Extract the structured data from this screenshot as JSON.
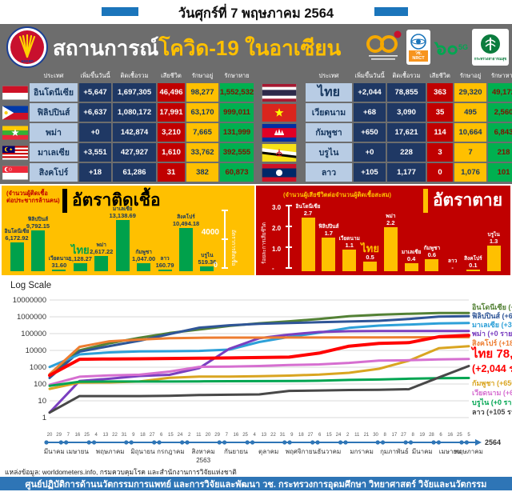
{
  "topbar": {
    "title": "วันศุกร์ที่ 7 พฤษภาคม 2564"
  },
  "banner": {
    "title_white": "สถานการณ์",
    "title_yellow": "โควิด-19 ในอาเซียน",
    "logos": {
      "logo_60th": "60th-anniversary-logo",
      "nrct_line1": "วช.",
      "nrct_line2": "NRCT",
      "logo_5g_text": "๖๐",
      "logo_5g_sub": "5G",
      "moph_text": "กระทรวงสาธารณสุข"
    }
  },
  "tables": {
    "headers": [
      "ประเทศ",
      "เพิ่มขึ้นวันนี้",
      "ติดเชื้อรวม",
      "เสียชีวิต",
      "รักษาอยู่",
      "รักษาหาย"
    ],
    "left_rows": [
      {
        "country": "อินโดนีเซีย",
        "new": "+5,647",
        "total": "1,697,305",
        "deaths": "46,496",
        "active": "98,277",
        "recovered": "1,552,532"
      },
      {
        "country": "ฟิลิปปินส์",
        "new": "+6,637",
        "total": "1,080,172",
        "deaths": "17,991",
        "active": "63,170",
        "recovered": "999,011"
      },
      {
        "country": "พม่า",
        "new": "+0",
        "total": "142,874",
        "deaths": "3,210",
        "active": "7,665",
        "recovered": "131,999"
      },
      {
        "country": "มาเลเซีย",
        "new": "+3,551",
        "total": "427,927",
        "deaths": "1,610",
        "active": "33,762",
        "recovered": "392,555"
      },
      {
        "country": "สิงคโปร์",
        "new": "+18",
        "total": "61,286",
        "deaths": "31",
        "active": "382",
        "recovered": "60,873"
      }
    ],
    "right_rows": [
      {
        "country": "ไทย",
        "new": "+2,044",
        "total": "78,855",
        "deaths": "363",
        "active": "29,320",
        "recovered": "49,172"
      },
      {
        "country": "เวียดนาม",
        "new": "+68",
        "total": "3,090",
        "deaths": "35",
        "active": "495",
        "recovered": "2,560"
      },
      {
        "country": "กัมพูชา",
        "new": "+650",
        "total": "17,621",
        "deaths": "114",
        "active": "10,664",
        "recovered": "6,843"
      },
      {
        "country": "บรูไน",
        "new": "+0",
        "total": "228",
        "deaths": "3",
        "active": "7",
        "recovered": "218"
      },
      {
        "country": "ลาว",
        "new": "+105",
        "total": "1,177",
        "deaths": "0",
        "active": "1,076",
        "recovered": "101"
      }
    ]
  },
  "chart_data": [
    {
      "type": "bar",
      "panel": "infection-rate",
      "title": "อัตราติดเชื้อ",
      "subtitle": "(จำนวนผู้ติดเชื้อต่อประชากรล้านคน)",
      "subtitle_lines": [
        "(จำนวนผู้ติดเชื้อ",
        "ต่อประชากรล้านคน)"
      ],
      "categories": [
        "อินโดนีเซีย",
        "ฟิลิปปินส์",
        "เวียดนาม",
        "ไทย",
        "พม่า",
        "มาเลเซีย",
        "กัมพูชา",
        "ลาว",
        "สิงคโปร์",
        "บรูไน"
      ],
      "values": [
        6172.92,
        9792.15,
        31.6,
        1128.27,
        2617.22,
        13138.69,
        1047.0,
        160.79,
        10494.18,
        519.36
      ],
      "value_labels": [
        "6,172.92",
        "9,792.15",
        "31.60",
        "1,128.27",
        "2,617.22",
        "13,138.69",
        "1,047.00",
        "160.79",
        "10,494.18",
        "519.36"
      ],
      "highlight_category": "ไทย",
      "axis_label": "อัตราการติดเชื้อ",
      "axis_ticks": [
        "4000",
        "0"
      ],
      "bar_color": "#00a14b",
      "panel_bg": "#ffc000"
    },
    {
      "type": "bar",
      "panel": "death-rate",
      "title": "อัตราตาย",
      "subtitle": "(จำนวนผู้เสียชีวิตต่อจำนวนผู้ติดเชื้อสะสม)",
      "categories": [
        "อินโดนีเซีย",
        "ฟิลิปปินส์",
        "เวียดนาม",
        "ไทย",
        "พม่า",
        "มาเลเซีย",
        "กัมพูชา",
        "ลาว",
        "สิงคโปร์",
        "บรูไน"
      ],
      "values": [
        2.7,
        1.7,
        1.1,
        0.5,
        2.2,
        0.4,
        0.6,
        null,
        0.1,
        1.3
      ],
      "value_labels": [
        "2.7",
        "1.7",
        "1.1",
        "0.5",
        "2.2",
        "0.4",
        "0.6",
        "-",
        "0.1",
        "1.3"
      ],
      "ylim": [
        0,
        3.0
      ],
      "highlight_category": "ไทย",
      "axis_label": "ร้อยละการเสียชีวิต",
      "axis_ticks": [
        "3.0",
        "2.0",
        "1.0",
        "-"
      ],
      "bar_color": "#ffc000",
      "panel_bg": "#c00000"
    },
    {
      "type": "line",
      "title": "Log Scale",
      "yscale": "log",
      "ylim": [
        1,
        10000000
      ],
      "ytick_labels": [
        "10000000",
        "1000000",
        "100000",
        "10000",
        "1000",
        "100",
        "10",
        "1"
      ],
      "day_ticks": [
        "20",
        "29",
        "7",
        "16",
        "25",
        "4",
        "13",
        "22",
        "31",
        "9",
        "18",
        "27",
        "6",
        "15",
        "24",
        "2",
        "11",
        "20",
        "29",
        "7",
        "16",
        "25",
        "4",
        "13",
        "22",
        "31",
        "9",
        "18",
        "27",
        "6",
        "15",
        "24",
        "2",
        "11",
        "21",
        "30",
        "8",
        "17",
        "27",
        "8",
        "19",
        "28",
        "6",
        "16",
        "25",
        "5"
      ],
      "month_labels": [
        "มีนาคม",
        "เมษายน",
        "พฤษภาคม",
        "มิถุนายน",
        "กรกฎาคม",
        "สิงหาคม",
        "กันยายน",
        "ตุลาคม",
        "พฤศจิกายน",
        "ธันวาคม",
        "มกราคม",
        "กุมภาพันธ์",
        "มีนาคม",
        "เมษายน",
        "พฤษภาคม"
      ],
      "month_tick_counts": [
        2,
        3,
        4,
        3,
        3,
        4,
        3,
        4,
        3,
        3,
        4,
        3,
        3,
        3,
        1
      ],
      "year_label_under": "2563",
      "year_label_right": "2564",
      "series": [
        {
          "name": "อินโดนีเซีย",
          "label": "อินโดนีเซีย (+5,647  ราย)",
          "color": "#538135",
          "values": [
            369,
            10118,
            26473,
            56385,
            108376,
            174796,
            287008,
            410088,
            538883,
            743198,
            1078314,
            1334634,
            1511712,
            1668368,
            1697305
          ]
        },
        {
          "name": "ฟิลิปปินส์",
          "label": "ฟิลิปปินส์ (+6,637 ราย)",
          "color": "#2f5597",
          "values": [
            230,
            8488,
            18086,
            37514,
            93354,
            224264,
            314079,
            380729,
            431630,
            474064,
            525618,
            576352,
            747288,
            1037460,
            1080172
          ]
        },
        {
          "name": "มาเลเซีย",
          "label": "มาเลเซีย (+3,551 ราย)",
          "color": "#2da0d8",
          "values": [
            1030,
            5780,
            7629,
            8640,
            8976,
            9340,
            11135,
            31548,
            63176,
            113010,
            219173,
            300752,
            345500,
            408713,
            427927
          ]
        },
        {
          "name": "พม่า",
          "label": "พม่า (+0 ราย)",
          "color": "#7a3fc0",
          "values": [
            2,
            151,
            206,
            299,
            353,
            882,
            12425,
            52706,
            87977,
            124630,
            139152,
            141896,
            142385,
            142800,
            142874
          ]
        },
        {
          "name": "สิงคโปร์",
          "label": "สิงคโปร์ (+18 ราย)",
          "color": "#ed7d31",
          "values": [
            385,
            16169,
            34884,
            43907,
            52825,
            56771,
            57765,
            58015,
            58230,
            58569,
            59449,
            59925,
            60288,
            61121,
            61286
          ]
        },
        {
          "name": "ไทย",
          "label": "ไทย 78,855",
          "label2": "(+2,044 ราย)",
          "color": "#ff0000",
          "values": [
            322,
            2954,
            3081,
            3171,
            3310,
            3411,
            3564,
            3780,
            3977,
            6884,
            17953,
            25951,
            28863,
            65153,
            78855
          ]
        },
        {
          "name": "กัมพูชา",
          "label": "กัมพูชา (+650 ราย)",
          "color": "#d9a521",
          "values": [
            51,
            122,
            125,
            141,
            234,
            273,
            275,
            292,
            315,
            364,
            466,
            805,
            2440,
            13402,
            17621
          ]
        },
        {
          "name": "เวียดนาม",
          "label": "เวียดนาม (+68 ราย)",
          "color": "#d66fd0",
          "values": [
            91,
            270,
            328,
            355,
            546,
            1044,
            1094,
            1180,
            1343,
            1465,
            1817,
            2448,
            2603,
            2928,
            3090
          ]
        },
        {
          "name": "บรูไน",
          "label": "บรูไน (+0 ราย)",
          "color": "#00a551",
          "values": [
            78,
            138,
            141,
            141,
            141,
            143,
            146,
            148,
            150,
            157,
            175,
            185,
            206,
            223,
            228
          ]
        },
        {
          "name": "ลาว",
          "label": "ลาว (+105 ราย)",
          "color": "#484848",
          "values": [
            2,
            19,
            19,
            19,
            20,
            22,
            23,
            24,
            39,
            41,
            44,
            45,
            49,
            247,
            1177
          ]
        }
      ]
    }
  ],
  "source": "แหล่งข้อมูล: worldometers.info, กรมควบคุมโรค และสำนักงานการวิจัยแห่งชาติ",
  "footer": "ศูนย์ปฏิบัติการด้านนวัตกรรมการแพทย์ และการวิจัยและพัฒนา วช.  กระทรวงการอุดมศึกษา วิทยาศาสตร์ วิจัยและนวัตกรรม",
  "colors": {
    "accent_blue": "#2e75b6",
    "banner_gray": "#6d6d6d",
    "navy_cell": "#1f3864",
    "country_cell": "#b8cce4",
    "deaths_cell": "#c00000",
    "active_cell": "#ffc000",
    "recovered_cell": "#00b050"
  }
}
